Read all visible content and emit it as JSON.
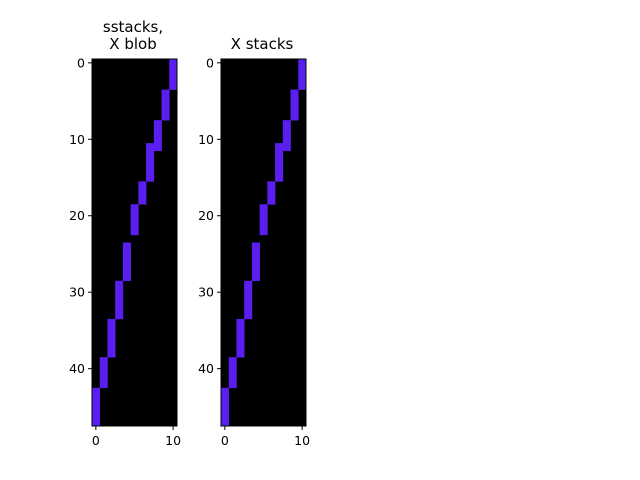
{
  "colors": {
    "background": "#000000",
    "highlight": "#5a1ff0"
  },
  "chart_data": [
    {
      "type": "heatmap",
      "title_lines": [
        "sstacks,",
        "X blob"
      ],
      "n_rows": 48,
      "n_cols": 11,
      "x_ticks": [
        0,
        10
      ],
      "y_ticks": [
        0,
        10,
        20,
        30,
        40
      ],
      "xlim": [
        -0.5,
        10.5
      ],
      "ylim": [
        47.5,
        -0.5
      ],
      "runs": [
        {
          "col": 10,
          "rows": [
            0,
            3
          ]
        },
        {
          "col": 9,
          "rows": [
            4,
            7
          ]
        },
        {
          "col": 8,
          "rows": [
            8,
            11
          ]
        },
        {
          "col": 7,
          "rows": [
            11,
            15
          ]
        },
        {
          "col": 6,
          "rows": [
            16,
            18
          ]
        },
        {
          "col": 5,
          "rows": [
            19,
            22
          ]
        },
        {
          "col": 4,
          "rows": [
            24,
            28
          ]
        },
        {
          "col": 3,
          "rows": [
            29,
            33
          ]
        },
        {
          "col": 2,
          "rows": [
            34,
            38
          ]
        },
        {
          "col": 1,
          "rows": [
            39,
            42
          ]
        },
        {
          "col": 0,
          "rows": [
            43,
            47
          ]
        }
      ]
    },
    {
      "type": "heatmap",
      "title_lines": [
        "X stacks"
      ],
      "n_rows": 48,
      "n_cols": 11,
      "x_ticks": [
        0,
        10
      ],
      "y_ticks": [
        0,
        10,
        20,
        30,
        40
      ],
      "xlim": [
        -0.5,
        10.5
      ],
      "ylim": [
        47.5,
        -0.5
      ],
      "runs": [
        {
          "col": 10,
          "rows": [
            0,
            3
          ]
        },
        {
          "col": 9,
          "rows": [
            4,
            7
          ]
        },
        {
          "col": 8,
          "rows": [
            8,
            11
          ]
        },
        {
          "col": 7,
          "rows": [
            11,
            15
          ]
        },
        {
          "col": 6,
          "rows": [
            16,
            18
          ]
        },
        {
          "col": 5,
          "rows": [
            19,
            22
          ]
        },
        {
          "col": 4,
          "rows": [
            24,
            28
          ]
        },
        {
          "col": 3,
          "rows": [
            29,
            33
          ]
        },
        {
          "col": 2,
          "rows": [
            34,
            38
          ]
        },
        {
          "col": 1,
          "rows": [
            39,
            42
          ]
        },
        {
          "col": 0,
          "rows": [
            43,
            47
          ]
        }
      ]
    }
  ]
}
